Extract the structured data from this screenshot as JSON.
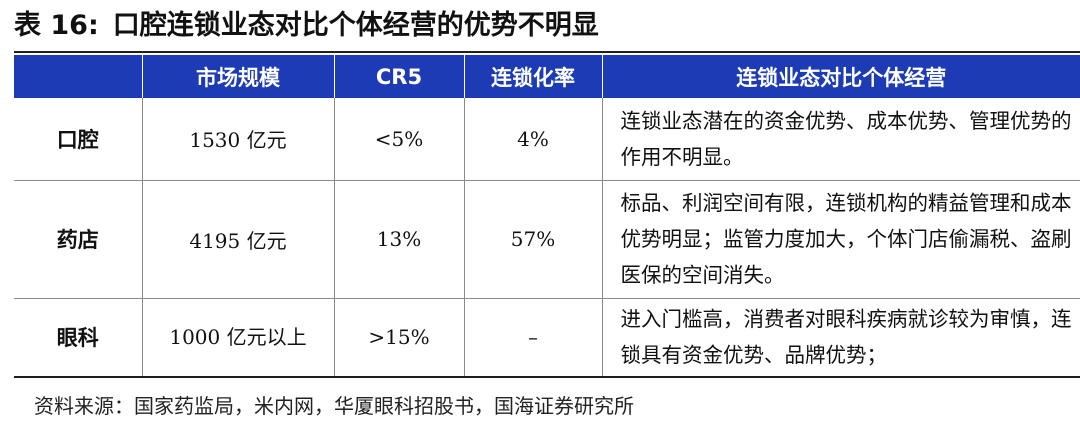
{
  "title": {
    "number": "表 16:",
    "text": "口腔连锁业态对比个体经营的优势不明显"
  },
  "table": {
    "headers": [
      "",
      "市场规模",
      "CR5",
      "连锁化率",
      "连锁业态对比个体经营"
    ],
    "rows": [
      {
        "name": "口腔",
        "market_size": "1530 亿元",
        "cr5": "<5%",
        "chain_rate": "4%",
        "advantage": "连锁业态潜在的资金优势、成本优势、管理优势的作用不明显。"
      },
      {
        "name": "药店",
        "market_size": "4195 亿元",
        "cr5": "13%",
        "chain_rate": "57%",
        "advantage": "标品、利润空间有限，连锁机构的精益管理和成本优势明显；监管力度加大，个体门店偷漏税、盗刷医保的空间消失。"
      },
      {
        "name": "眼科",
        "market_size": "1000 亿元以上",
        "cr5": ">15%",
        "chain_rate": "–",
        "advantage": "进入门槛高，消费者对眼科疾病就诊较为审慎，连锁具有资金优势、品牌优势；"
      }
    ]
  },
  "source": "资料来源：国家药监局，米内网，华厦眼科招股书，国海证券研究所",
  "colors": {
    "header_bg": "#1c3bb5",
    "header_text": "#ffffff",
    "rule": "#1f1f1f"
  }
}
